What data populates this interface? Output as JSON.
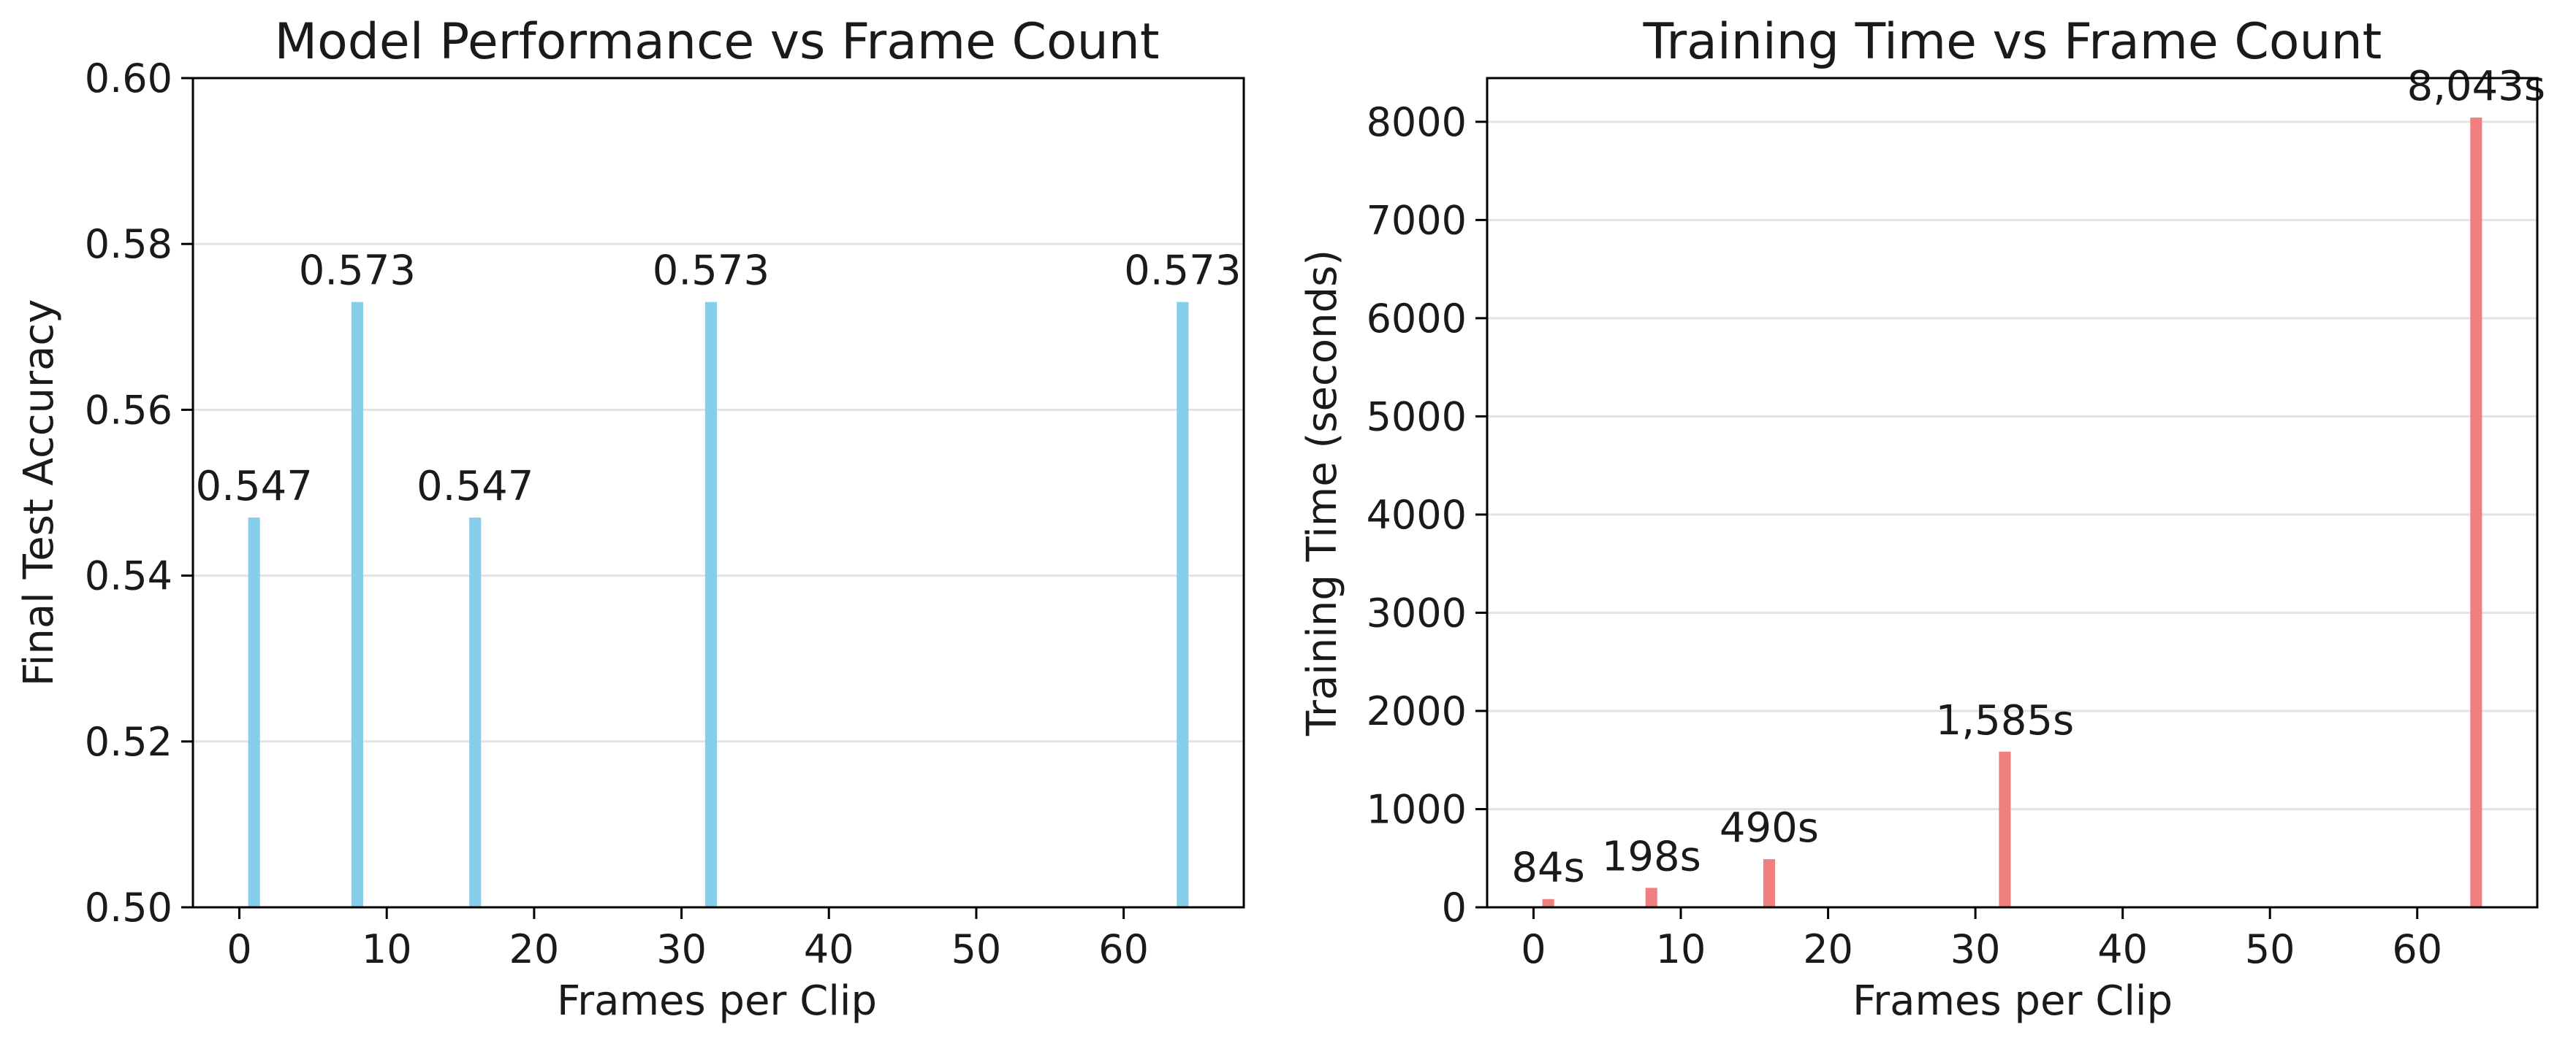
{
  "chart_data": [
    {
      "type": "bar",
      "title": "Model Performance vs Frame Count",
      "xlabel": "Frames per Clip",
      "ylabel": "Final Test Accuracy",
      "x": [
        1,
        8,
        16,
        32,
        64
      ],
      "values": [
        0.547,
        0.573,
        0.547,
        0.573,
        0.573
      ],
      "data_labels": [
        "0.547",
        "0.573",
        "0.547",
        "0.573",
        "0.573"
      ],
      "xlim": [
        -3.15,
        68.15
      ],
      "ylim": [
        0.5,
        0.6
      ],
      "xticks": [
        0,
        10,
        20,
        30,
        40,
        50,
        60
      ],
      "yticks": [
        0.5,
        0.52,
        0.54,
        0.56,
        0.58,
        0.6
      ],
      "ytick_labels": [
        "0.50",
        "0.52",
        "0.54",
        "0.56",
        "0.58",
        "0.60"
      ],
      "bar_width": 0.8,
      "grid": "y",
      "color": "#87ceeb"
    },
    {
      "type": "bar",
      "title": "Training Time vs Frame Count",
      "xlabel": "Frames per Clip",
      "ylabel": "Training Time (seconds)",
      "x": [
        1,
        8,
        16,
        32,
        64
      ],
      "values": [
        84,
        198,
        490,
        1585,
        8043
      ],
      "data_labels": [
        "84s",
        "198s",
        "490s",
        "1,585s",
        "8,043s"
      ],
      "xlim": [
        -3.15,
        68.15
      ],
      "ylim": [
        0,
        8445
      ],
      "xticks": [
        0,
        10,
        20,
        30,
        40,
        50,
        60
      ],
      "yticks": [
        0,
        1000,
        2000,
        3000,
        4000,
        5000,
        6000,
        7000,
        8000
      ],
      "ytick_labels": [
        "0",
        "1000",
        "2000",
        "3000",
        "4000",
        "5000",
        "6000",
        "7000",
        "8000"
      ],
      "bar_width": 0.8,
      "grid": "y",
      "color": "#f08080"
    }
  ]
}
